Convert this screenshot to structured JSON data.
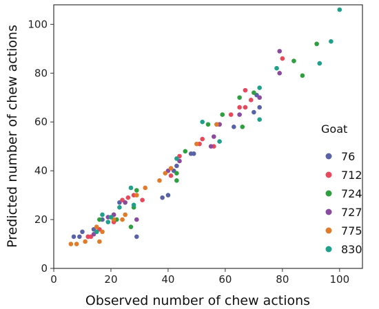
{
  "chart_data": {
    "type": "scatter",
    "xlabel": "Observed number of chew actions",
    "ylabel": "Predicted number of chew actions",
    "xlim": [
      0,
      108
    ],
    "ylim": [
      0,
      108
    ],
    "xticks": [
      0,
      20,
      40,
      60,
      80,
      100
    ],
    "yticks": [
      0,
      20,
      40,
      60,
      80,
      100
    ],
    "grid": false,
    "legend": {
      "title": "Goat",
      "position": "right"
    },
    "series": [
      {
        "name": "76",
        "color": "#5a62a6",
        "points": [
          [
            7,
            13
          ],
          [
            9,
            13
          ],
          [
            10,
            15
          ],
          [
            12,
            13
          ],
          [
            14,
            16
          ],
          [
            17,
            20
          ],
          [
            21,
            22
          ],
          [
            23,
            27
          ],
          [
            29,
            13
          ],
          [
            38,
            29
          ],
          [
            40,
            30
          ],
          [
            42,
            40
          ],
          [
            43,
            42
          ],
          [
            48,
            47
          ],
          [
            49,
            47
          ],
          [
            57,
            59
          ],
          [
            63,
            58
          ],
          [
            70,
            64
          ],
          [
            71,
            71
          ],
          [
            72,
            66
          ]
        ]
      },
      {
        "name": "712",
        "color": "#e8485b",
        "points": [
          [
            12,
            13
          ],
          [
            13,
            13
          ],
          [
            15,
            15
          ],
          [
            16,
            16
          ],
          [
            21,
            19
          ],
          [
            24,
            28
          ],
          [
            26,
            29
          ],
          [
            28,
            30
          ],
          [
            31,
            28
          ],
          [
            41,
            38
          ],
          [
            44,
            46
          ],
          [
            51,
            51
          ],
          [
            52,
            53
          ],
          [
            56,
            50
          ],
          [
            58,
            59
          ],
          [
            62,
            63
          ],
          [
            65,
            66
          ],
          [
            67,
            73
          ],
          [
            67,
            66
          ],
          [
            69,
            69
          ],
          [
            80,
            86
          ]
        ]
      },
      {
        "name": "724",
        "color": "#2e9e3e",
        "points": [
          [
            16,
            20
          ],
          [
            22,
            20
          ],
          [
            27,
            17
          ],
          [
            28,
            25
          ],
          [
            29,
            32
          ],
          [
            43,
            36
          ],
          [
            43,
            39
          ],
          [
            46,
            48
          ],
          [
            54,
            59
          ],
          [
            59,
            63
          ],
          [
            65,
            70
          ],
          [
            66,
            58
          ],
          [
            70,
            72
          ],
          [
            84,
            85
          ],
          [
            87,
            79
          ],
          [
            92,
            92
          ]
        ]
      },
      {
        "name": "727",
        "color": "#8a4a9e",
        "points": [
          [
            14,
            14
          ],
          [
            19,
            21
          ],
          [
            21,
            22
          ],
          [
            25,
            27
          ],
          [
            29,
            20
          ],
          [
            40,
            40
          ],
          [
            44,
            44
          ],
          [
            55,
            50
          ],
          [
            56,
            54
          ],
          [
            58,
            59
          ],
          [
            65,
            63
          ],
          [
            72,
            70
          ],
          [
            79,
            80
          ],
          [
            79,
            89
          ]
        ]
      },
      {
        "name": "775",
        "color": "#e07b2a",
        "points": [
          [
            6,
            10
          ],
          [
            8,
            10
          ],
          [
            11,
            11
          ],
          [
            15,
            17
          ],
          [
            16,
            11
          ],
          [
            17,
            15
          ],
          [
            21,
            20
          ],
          [
            24,
            20
          ],
          [
            25,
            22
          ],
          [
            29,
            30
          ],
          [
            32,
            33
          ],
          [
            37,
            36
          ],
          [
            39,
            39
          ],
          [
            41,
            41
          ],
          [
            50,
            51
          ],
          [
            57,
            59
          ]
        ]
      },
      {
        "name": "830",
        "color": "#1fa08a",
        "points": [
          [
            15,
            15
          ],
          [
            17,
            22
          ],
          [
            19,
            19
          ],
          [
            20,
            21
          ],
          [
            23,
            25
          ],
          [
            27,
            33
          ],
          [
            28,
            26
          ],
          [
            43,
            45
          ],
          [
            52,
            60
          ],
          [
            58,
            52
          ],
          [
            72,
            61
          ],
          [
            72,
            74
          ],
          [
            78,
            82
          ],
          [
            93,
            84
          ],
          [
            97,
            93
          ],
          [
            100,
            106
          ]
        ]
      }
    ]
  }
}
